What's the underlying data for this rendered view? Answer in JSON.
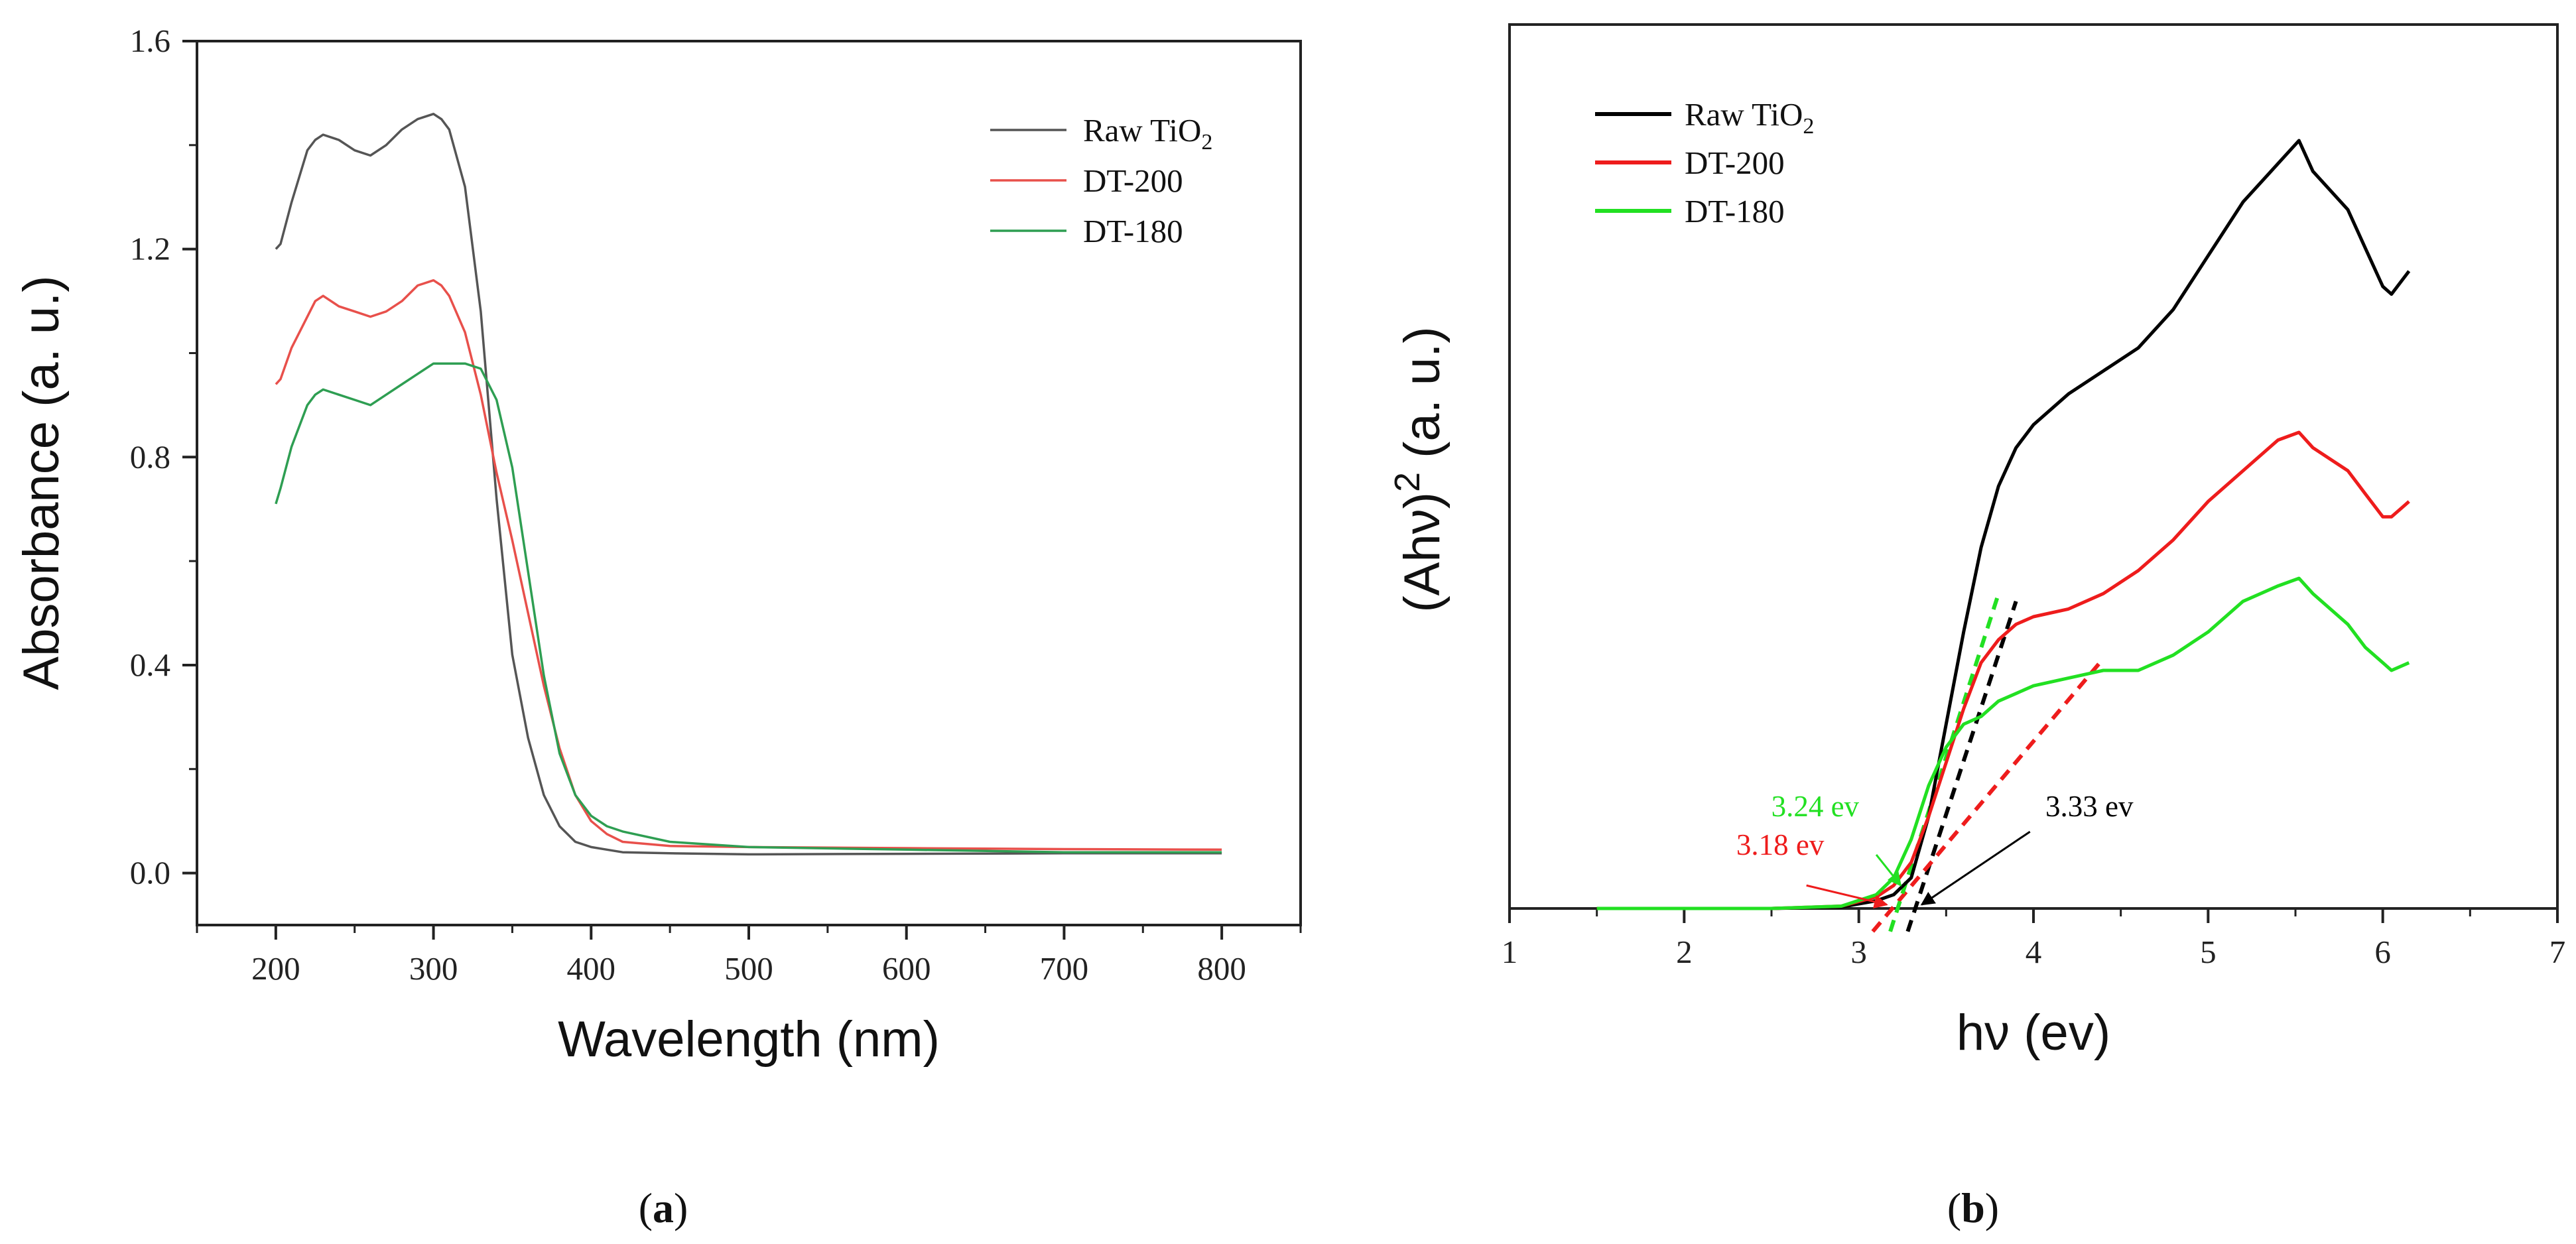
{
  "chart_data": [
    {
      "panel": "a",
      "type": "line",
      "caption": "(a)",
      "caption_letter": "a",
      "xlabel": "Wavelength (nm)",
      "ylabel": "Absorbance (a. u.)",
      "xlim": [
        150,
        850
      ],
      "ylim": [
        -0.1,
        1.6
      ],
      "xticks": [
        200,
        300,
        400,
        500,
        600,
        700,
        800
      ],
      "yticks": [
        0.0,
        0.4,
        0.8,
        1.2,
        1.6
      ],
      "ytick_labels": [
        "0.0",
        "0.4",
        "0.8",
        "1.2",
        "1.6"
      ],
      "legend_position": "top-right",
      "series": [
        {
          "name": "Raw TiO2",
          "label_main": "Raw TiO",
          "label_sub": "2",
          "color": "#555555",
          "x": [
            200,
            203,
            210,
            220,
            225,
            230,
            240,
            250,
            260,
            270,
            280,
            290,
            300,
            305,
            310,
            320,
            330,
            340,
            350,
            360,
            370,
            380,
            390,
            400,
            410,
            420,
            450,
            500,
            600,
            700,
            800
          ],
          "y": [
            1.2,
            1.21,
            1.29,
            1.39,
            1.41,
            1.42,
            1.41,
            1.39,
            1.38,
            1.4,
            1.43,
            1.45,
            1.46,
            1.45,
            1.43,
            1.32,
            1.08,
            0.72,
            0.42,
            0.26,
            0.15,
            0.09,
            0.06,
            0.05,
            0.045,
            0.04,
            0.038,
            0.036,
            0.037,
            0.038,
            0.038
          ]
        },
        {
          "name": "DT-200",
          "label_main": "DT-200",
          "color": "#e8504b",
          "x": [
            200,
            203,
            210,
            220,
            225,
            230,
            240,
            250,
            260,
            270,
            280,
            290,
            300,
            305,
            310,
            320,
            330,
            340,
            350,
            360,
            370,
            380,
            390,
            400,
            410,
            420,
            450,
            500,
            600,
            700,
            800
          ],
          "y": [
            0.94,
            0.95,
            1.01,
            1.07,
            1.1,
            1.11,
            1.09,
            1.08,
            1.07,
            1.08,
            1.1,
            1.13,
            1.14,
            1.13,
            1.11,
            1.04,
            0.92,
            0.77,
            0.64,
            0.5,
            0.36,
            0.24,
            0.15,
            0.1,
            0.075,
            0.06,
            0.052,
            0.05,
            0.048,
            0.046,
            0.045
          ]
        },
        {
          "name": "DT-180",
          "label_main": "DT-180",
          "color": "#2e9e52",
          "x": [
            200,
            203,
            210,
            220,
            225,
            230,
            240,
            250,
            260,
            270,
            280,
            290,
            300,
            310,
            320,
            330,
            340,
            350,
            360,
            370,
            380,
            390,
            400,
            410,
            420,
            450,
            500,
            600,
            700,
            800
          ],
          "y": [
            0.71,
            0.74,
            0.82,
            0.9,
            0.92,
            0.93,
            0.92,
            0.91,
            0.9,
            0.92,
            0.94,
            0.96,
            0.98,
            0.98,
            0.98,
            0.97,
            0.91,
            0.78,
            0.58,
            0.38,
            0.23,
            0.15,
            0.11,
            0.09,
            0.08,
            0.06,
            0.05,
            0.045,
            0.04,
            0.04
          ]
        }
      ]
    },
    {
      "panel": "b",
      "type": "line",
      "caption": "(b)",
      "caption_letter": "b",
      "xlabel": "hν (ev)",
      "ylabel": "(Ahν)2 (a. u.)",
      "ylabel_main": "(Ahν)",
      "ylabel_sup": "2",
      "ylabel_rest": " (a. u.)",
      "xlim": [
        1,
        7
      ],
      "ylim": [
        0,
        1.0
      ],
      "xticks": [
        1,
        2,
        3,
        4,
        5,
        6,
        7
      ],
      "legend_position": "top-left",
      "series": [
        {
          "name": "Raw TiO2",
          "label_main": "Raw TiO",
          "label_sub": "2",
          "color": "#000000",
          "x": [
            1.5,
            2.0,
            2.5,
            2.9,
            3.1,
            3.2,
            3.3,
            3.4,
            3.5,
            3.6,
            3.7,
            3.8,
            3.9,
            4.0,
            4.2,
            4.4,
            4.6,
            4.8,
            5.0,
            5.2,
            5.4,
            5.52,
            5.6,
            5.8,
            5.9,
            6.0,
            6.05,
            6.15
          ],
          "y": [
            0.0,
            0.0,
            0.0,
            0.002,
            0.01,
            0.018,
            0.04,
            0.12,
            0.24,
            0.36,
            0.47,
            0.55,
            0.6,
            0.63,
            0.67,
            0.7,
            0.73,
            0.78,
            0.85,
            0.92,
            0.97,
            1.0,
            0.96,
            0.91,
            0.86,
            0.81,
            0.8,
            0.83
          ]
        },
        {
          "name": "DT-200",
          "label_main": "DT-200",
          "color": "#ee1c1c",
          "x": [
            1.5,
            2.0,
            2.5,
            2.9,
            3.1,
            3.2,
            3.3,
            3.4,
            3.5,
            3.6,
            3.7,
            3.8,
            3.9,
            4.0,
            4.2,
            4.4,
            4.6,
            4.8,
            5.0,
            5.2,
            5.4,
            5.52,
            5.6,
            5.8,
            5.9,
            6.0,
            6.05,
            6.15
          ],
          "y": [
            0.0,
            0.0,
            0.0,
            0.003,
            0.015,
            0.03,
            0.06,
            0.12,
            0.19,
            0.26,
            0.32,
            0.35,
            0.37,
            0.38,
            0.39,
            0.41,
            0.44,
            0.48,
            0.53,
            0.57,
            0.61,
            0.62,
            0.6,
            0.57,
            0.54,
            0.51,
            0.51,
            0.53
          ]
        },
        {
          "name": "DT-180",
          "label_main": "DT-180",
          "color": "#22e022",
          "x": [
            1.5,
            2.0,
            2.5,
            2.9,
            3.1,
            3.2,
            3.3,
            3.4,
            3.5,
            3.6,
            3.7,
            3.8,
            3.9,
            4.0,
            4.2,
            4.4,
            4.6,
            4.8,
            5.0,
            5.2,
            5.4,
            5.52,
            5.6,
            5.8,
            5.9,
            6.0,
            6.05,
            6.15
          ],
          "y": [
            0.0,
            0.0,
            0.0,
            0.003,
            0.018,
            0.04,
            0.09,
            0.16,
            0.21,
            0.24,
            0.25,
            0.27,
            0.28,
            0.29,
            0.3,
            0.31,
            0.31,
            0.33,
            0.36,
            0.4,
            0.42,
            0.43,
            0.41,
            0.37,
            0.34,
            0.32,
            0.31,
            0.32
          ]
        }
      ],
      "tangents": [
        {
          "name": "Raw TiO2 tangent",
          "color": "#000000",
          "x": [
            3.28,
            3.9
          ],
          "y": [
            -0.03,
            0.4
          ]
        },
        {
          "name": "DT-200 tangent",
          "color": "#ee1c1c",
          "x": [
            3.08,
            4.38
          ],
          "y": [
            -0.03,
            0.32
          ]
        },
        {
          "name": "DT-180 tangent",
          "color": "#22e022",
          "x": [
            3.18,
            3.8
          ],
          "y": [
            -0.03,
            0.41
          ]
        }
      ],
      "annotations": [
        {
          "text": "3.18 ev",
          "color": "#ee1c1c",
          "text_x": 2.55,
          "text_y": 0.07,
          "arrow_from": [
            2.7,
            0.03
          ],
          "arrow_to": [
            3.16,
            0.005
          ]
        },
        {
          "text": "3.24 ev",
          "color": "#22e022",
          "text_x": 2.75,
          "text_y": 0.12,
          "arrow_from": [
            3.1,
            0.07
          ],
          "arrow_to": [
            3.24,
            0.03
          ]
        },
        {
          "text": "3.33 ev",
          "color": "#000000",
          "text_x": 4.32,
          "text_y": 0.12,
          "arrow_from": [
            3.98,
            0.1
          ],
          "arrow_to": [
            3.36,
            0.005
          ]
        }
      ]
    }
  ]
}
